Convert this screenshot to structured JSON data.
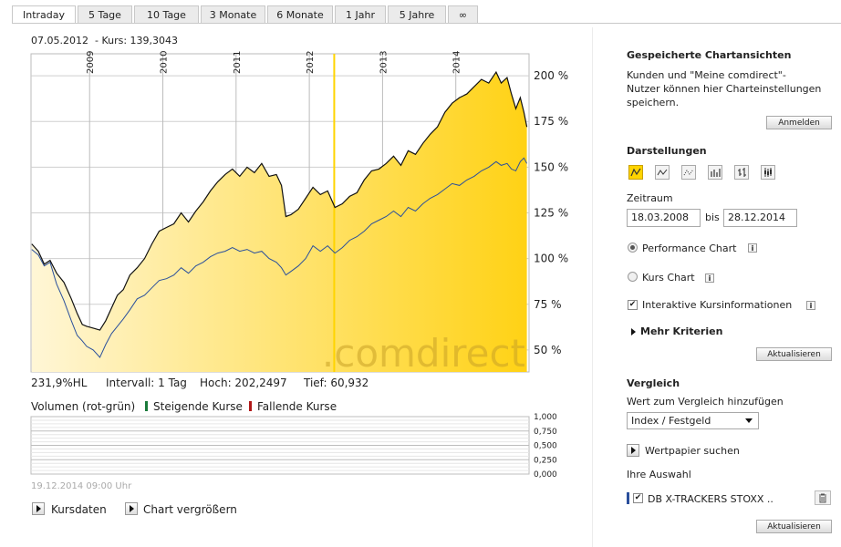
{
  "tabs": [
    "Intraday",
    "5 Tage",
    "10 Tage",
    "3 Monate",
    "6 Monate",
    "1 Jahr",
    "5 Jahre",
    "∞"
  ],
  "header": {
    "date": "07.05.2012",
    "kurs": "-  Kurs: 139,3043"
  },
  "chart_data": {
    "type": "line",
    "x_labels": [
      "2009",
      "2010",
      "2011",
      "2012",
      "2013",
      "2014"
    ],
    "y_ticks": [
      "200 %",
      "175 %",
      "150 %",
      "125 %",
      "100 %",
      "75 %",
      "50 %"
    ],
    "ylim": [
      38,
      212
    ],
    "series": [
      {
        "color": "#111111",
        "points": [
          [
            2008.21,
            108
          ],
          [
            2008.3,
            104
          ],
          [
            2008.38,
            97
          ],
          [
            2008.46,
            99
          ],
          [
            2008.55,
            92
          ],
          [
            2008.65,
            87
          ],
          [
            2008.75,
            78
          ],
          [
            2008.83,
            70
          ],
          [
            2008.9,
            64
          ],
          [
            2008.96,
            63
          ],
          [
            2009.05,
            62
          ],
          [
            2009.14,
            60.9
          ],
          [
            2009.22,
            66
          ],
          [
            2009.3,
            73
          ],
          [
            2009.38,
            80
          ],
          [
            2009.46,
            83
          ],
          [
            2009.55,
            91
          ],
          [
            2009.65,
            95
          ],
          [
            2009.75,
            100
          ],
          [
            2009.85,
            108
          ],
          [
            2009.95,
            115
          ],
          [
            2010.05,
            117
          ],
          [
            2010.15,
            119
          ],
          [
            2010.25,
            125
          ],
          [
            2010.35,
            120
          ],
          [
            2010.45,
            126
          ],
          [
            2010.55,
            131
          ],
          [
            2010.65,
            137
          ],
          [
            2010.75,
            142
          ],
          [
            2010.85,
            146
          ],
          [
            2010.95,
            149
          ],
          [
            2011.05,
            145
          ],
          [
            2011.15,
            150
          ],
          [
            2011.25,
            147
          ],
          [
            2011.35,
            152
          ],
          [
            2011.45,
            145
          ],
          [
            2011.55,
            146
          ],
          [
            2011.62,
            140
          ],
          [
            2011.68,
            123
          ],
          [
            2011.75,
            124
          ],
          [
            2011.85,
            127
          ],
          [
            2011.95,
            133
          ],
          [
            2012.05,
            139
          ],
          [
            2012.15,
            135
          ],
          [
            2012.25,
            137
          ],
          [
            2012.35,
            128
          ],
          [
            2012.45,
            130
          ],
          [
            2012.55,
            134
          ],
          [
            2012.65,
            136
          ],
          [
            2012.75,
            143
          ],
          [
            2012.85,
            148
          ],
          [
            2012.95,
            149
          ],
          [
            2013.05,
            152
          ],
          [
            2013.15,
            156
          ],
          [
            2013.25,
            151
          ],
          [
            2013.35,
            159
          ],
          [
            2013.45,
            157
          ],
          [
            2013.55,
            163
          ],
          [
            2013.65,
            168
          ],
          [
            2013.75,
            172
          ],
          [
            2013.85,
            180
          ],
          [
            2013.95,
            185
          ],
          [
            2014.05,
            188
          ],
          [
            2014.15,
            190
          ],
          [
            2014.25,
            194
          ],
          [
            2014.35,
            198
          ],
          [
            2014.45,
            196
          ],
          [
            2014.55,
            202
          ],
          [
            2014.62,
            196
          ],
          [
            2014.7,
            199
          ],
          [
            2014.76,
            190
          ],
          [
            2014.82,
            182
          ],
          [
            2014.88,
            188
          ],
          [
            2014.93,
            180
          ],
          [
            2014.97,
            172
          ]
        ]
      },
      {
        "color": "#2a4f9c",
        "points": [
          [
            2008.21,
            105
          ],
          [
            2008.3,
            102
          ],
          [
            2008.38,
            96
          ],
          [
            2008.46,
            98
          ],
          [
            2008.55,
            86
          ],
          [
            2008.65,
            77
          ],
          [
            2008.75,
            66
          ],
          [
            2008.83,
            58
          ],
          [
            2008.9,
            55
          ],
          [
            2008.96,
            52
          ],
          [
            2009.05,
            50
          ],
          [
            2009.14,
            46
          ],
          [
            2009.22,
            53
          ],
          [
            2009.3,
            59
          ],
          [
            2009.38,
            63
          ],
          [
            2009.46,
            67
          ],
          [
            2009.55,
            72
          ],
          [
            2009.65,
            78
          ],
          [
            2009.75,
            80
          ],
          [
            2009.85,
            84
          ],
          [
            2009.95,
            88
          ],
          [
            2010.05,
            89
          ],
          [
            2010.15,
            91
          ],
          [
            2010.25,
            95
          ],
          [
            2010.35,
            92
          ],
          [
            2010.45,
            96
          ],
          [
            2010.55,
            98
          ],
          [
            2010.65,
            101
          ],
          [
            2010.75,
            103
          ],
          [
            2010.85,
            104
          ],
          [
            2010.95,
            106
          ],
          [
            2011.05,
            104
          ],
          [
            2011.15,
            105
          ],
          [
            2011.25,
            103
          ],
          [
            2011.35,
            104
          ],
          [
            2011.45,
            100
          ],
          [
            2011.55,
            98
          ],
          [
            2011.62,
            95
          ],
          [
            2011.68,
            91
          ],
          [
            2011.75,
            93
          ],
          [
            2011.85,
            96
          ],
          [
            2011.95,
            100
          ],
          [
            2012.05,
            107
          ],
          [
            2012.15,
            104
          ],
          [
            2012.25,
            107
          ],
          [
            2012.35,
            103
          ],
          [
            2012.45,
            106
          ],
          [
            2012.55,
            110
          ],
          [
            2012.65,
            112
          ],
          [
            2012.75,
            115
          ],
          [
            2012.85,
            119
          ],
          [
            2012.95,
            121
          ],
          [
            2013.05,
            123
          ],
          [
            2013.15,
            126
          ],
          [
            2013.25,
            123
          ],
          [
            2013.35,
            128
          ],
          [
            2013.45,
            126
          ],
          [
            2013.55,
            130
          ],
          [
            2013.65,
            133
          ],
          [
            2013.75,
            135
          ],
          [
            2013.85,
            138
          ],
          [
            2013.95,
            141
          ],
          [
            2014.05,
            140
          ],
          [
            2014.15,
            143
          ],
          [
            2014.25,
            145
          ],
          [
            2014.35,
            148
          ],
          [
            2014.45,
            150
          ],
          [
            2014.55,
            153
          ],
          [
            2014.62,
            151
          ],
          [
            2014.7,
            152
          ],
          [
            2014.76,
            149
          ],
          [
            2014.82,
            148
          ],
          [
            2014.88,
            153
          ],
          [
            2014.93,
            155
          ],
          [
            2014.97,
            152
          ]
        ]
      }
    ],
    "marker_x": 2012.34,
    "watermark": ".comdirect",
    "x_range": [
      2008.2,
      2015.0
    ]
  },
  "stats": {
    "hl": "231,9%HL",
    "intervall": "Intervall: 1 Tag",
    "hoch": "Hoch: 202,2497",
    "tief": "Tief:  60,932"
  },
  "volume": {
    "label": "Volumen (rot-grün)",
    "steigend": "Steigende Kurse",
    "fallend": "Fallende Kurse",
    "ticks": [
      "1,000",
      "0,750",
      "0,500",
      "0,250",
      "0,000"
    ],
    "timestamp": "19.12.2014 09:00 Uhr"
  },
  "links": {
    "kursdaten": "Kursdaten",
    "vergroessern": "Chart vergrößern"
  },
  "panel": {
    "saved_title": "Gespeicherte Chartansichten",
    "saved_text1": "Kunden und \"Meine comdirect\"-",
    "saved_text2": "Nutzer können hier Charteinstellungen",
    "saved_text3": "speichern.",
    "anmelden": "Anmelden",
    "darstellungen": "Darstellungen",
    "zeitraum": "Zeitraum",
    "von": "18.03.2008",
    "bis": "bis",
    "bis_date": "28.12.2014",
    "performance": "Performance Chart",
    "kurs": "Kurs Chart",
    "interaktiv": "Interaktive Kursinformationen",
    "mehr": "Mehr Kriterien",
    "aktualisieren": "Aktualisieren",
    "vergleich": "Vergleich",
    "wert_vergleich": "Wert zum Vergleich hinzufügen",
    "index_select": "Index / Festgeld",
    "wertpapier": "Wertpapier suchen",
    "auswahl": "Ihre Auswahl",
    "db_item": "DB X-TRACKERS STOXX ..",
    "aktualisieren2": "Aktualisieren",
    "info": "i"
  },
  "colors": {
    "accent": "#ffd400",
    "line_main": "#111111",
    "line_compare": "#2a4f9c"
  }
}
